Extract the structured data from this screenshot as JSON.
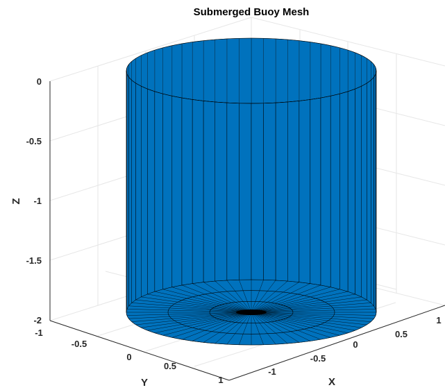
{
  "title": "Submerged Buoy Mesh",
  "axes": {
    "z_label": "Z",
    "y_label": "Y",
    "x_label": "X",
    "z_ticks": [
      "0",
      "-0.5",
      "-1",
      "-1.5",
      "-2"
    ],
    "y_ticks": [
      "-1",
      "-0.5",
      "0",
      "0.5",
      "1"
    ],
    "x_ticks": [
      "-1",
      "-0.5",
      "0",
      "0.5",
      "1"
    ]
  },
  "mesh": {
    "shape": "cylinder",
    "radius": 1,
    "z_top": 0,
    "z_bottom": -2,
    "color": "#0072BD",
    "edge_color": "#000000",
    "segments": 64,
    "bottom_rings": 3,
    "top_cap": false
  }
}
